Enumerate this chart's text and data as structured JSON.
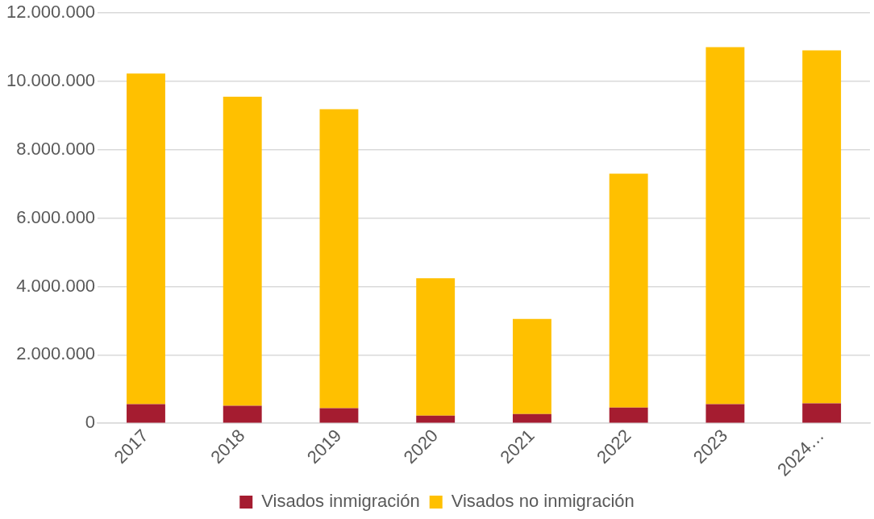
{
  "chart_data": {
    "type": "bar",
    "stacked": true,
    "categories": [
      "2017",
      "2018",
      "2019",
      "2020",
      "2021",
      "2022",
      "2023",
      "2024…"
    ],
    "series": [
      {
        "name": "Visados inmigración",
        "color": "#a51c30",
        "values": [
          560000,
          510000,
          440000,
          220000,
          270000,
          460000,
          560000,
          580000
        ]
      },
      {
        "name": "Visados no inmigración",
        "color": "#ffc000",
        "values": [
          9670000,
          9040000,
          8750000,
          4020000,
          2780000,
          6840000,
          10440000,
          10330000
        ]
      }
    ],
    "ylim": [
      0,
      12000000
    ],
    "yticks": [
      {
        "value": 0,
        "label": "0"
      },
      {
        "value": 2000000,
        "label": "2.000.000"
      },
      {
        "value": 4000000,
        "label": "4.000.000"
      },
      {
        "value": 6000000,
        "label": "6.000.000"
      },
      {
        "value": 8000000,
        "label": "8.000.000"
      },
      {
        "value": 10000000,
        "label": "10.000.000"
      },
      {
        "value": 12000000,
        "label": "12.000.000"
      }
    ],
    "grid": "y",
    "legend": "bottom"
  }
}
